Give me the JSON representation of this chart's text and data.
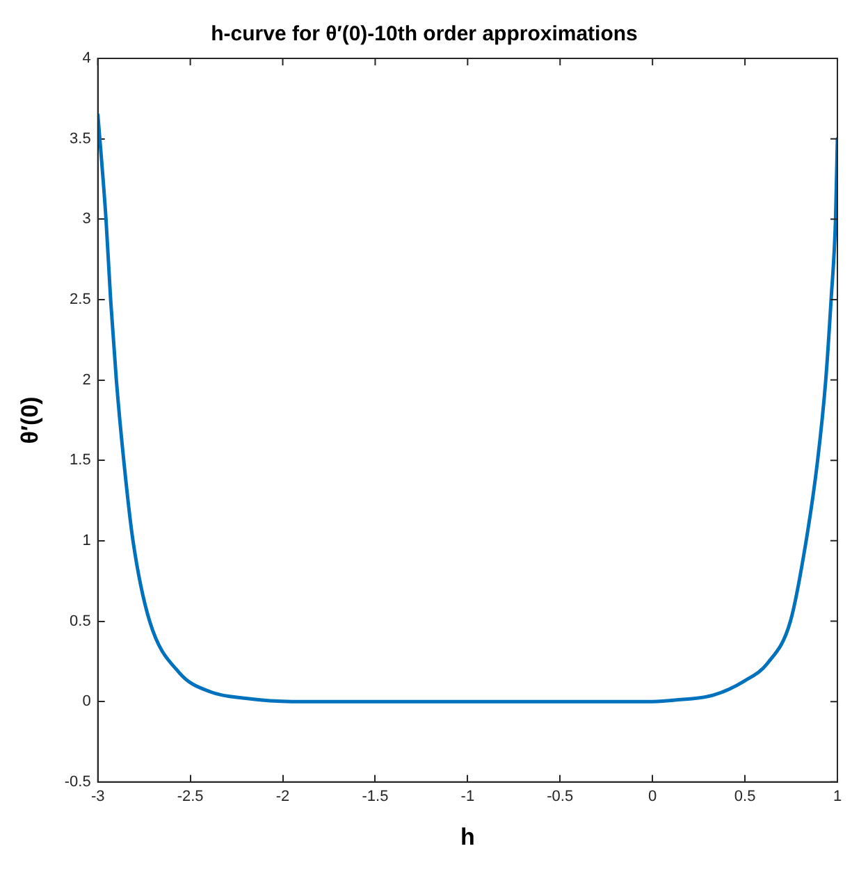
{
  "chart_data": {
    "type": "line",
    "title": "h-curve for θ′(0)-10th order approximations",
    "xlabel": "h",
    "ylabel": "θ′(0)",
    "series": [
      {
        "color": "#0072bd",
        "x": [
          -3,
          -2.956,
          -2.931,
          -2.9,
          -2.86,
          -2.81,
          -2.72,
          -2.56,
          -2.39,
          -2.2,
          -1.95,
          -1.5,
          -1,
          -0.5,
          0,
          0.132,
          0.329,
          0.5,
          0.623,
          0.746,
          0.831,
          0.893,
          0.937,
          0.966,
          0.99,
          1
        ],
        "values": [
          3.65,
          3.0,
          2.5,
          2.0,
          1.5,
          1.0,
          0.5,
          0.18,
          0.06,
          0.02,
          0,
          0,
          0,
          0,
          0,
          0.01,
          0.04,
          0.13,
          0.24,
          0.5,
          1.0,
          1.5,
          2.0,
          2.5,
          3.0,
          3.5
        ]
      }
    ],
    "xlim": [
      -3,
      1
    ],
    "xticks": [
      -3,
      -2.5,
      -2,
      -1.5,
      -1,
      -0.5,
      0,
      0.5,
      1
    ],
    "ylim": [
      -0.5,
      4
    ],
    "yticks": [
      -0.5,
      0,
      0.5,
      1,
      1.5,
      2,
      2.5,
      3,
      3.5,
      4
    ],
    "grid": false,
    "legend": false,
    "marker": "none",
    "line_style": "solid"
  }
}
